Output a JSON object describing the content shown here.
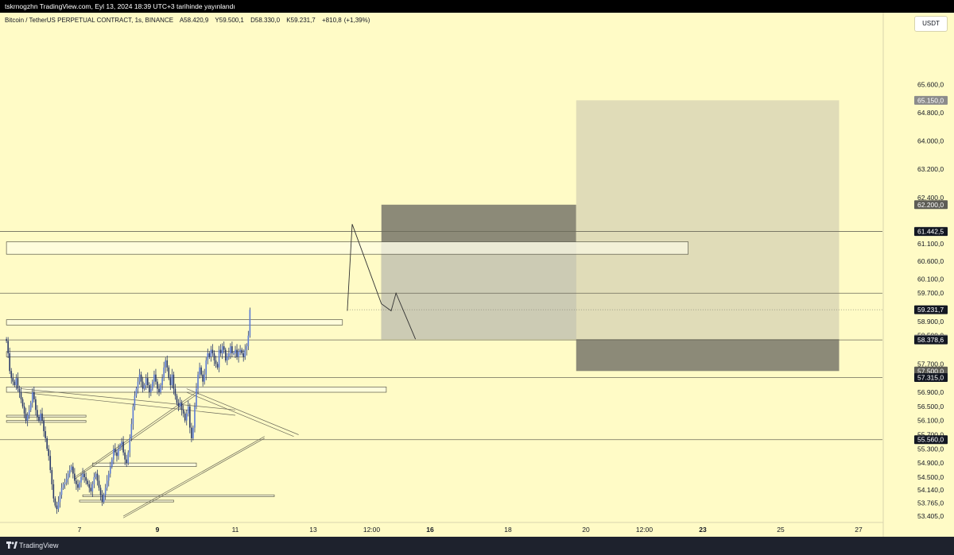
{
  "header": {
    "caption": "tskrnogzhn TradingView.com, Eyl 13, 2024 18:39 UTC+3 tarihinde yayınlandı"
  },
  "legend": {
    "symbol": "Bitcoin / TetherUS PERPETUAL CONTRACT, 1s, BINANCE",
    "open": "A58.420,9",
    "high": "Y59.500,1",
    "low": "D58.330,0",
    "close": "K59.231,7",
    "change": "+810,8",
    "change_pct": "(+1,39%)"
  },
  "currency_button": "USDT",
  "footer": {
    "brand": "TradingView",
    "logo_icon": "tradingview-logo-icon"
  },
  "colors": {
    "background": "#fffbc6",
    "candle": "#2a3a6a",
    "stop_zone": "#8c8a78",
    "target_zone": "#e0dcb8",
    "entry_zone": "#cccbb4",
    "last_price": "#131722"
  },
  "chart_data": {
    "type": "candlestick",
    "symbol": "BTCUSDT.P",
    "timeframe": "1s",
    "price_axis": {
      "ylim": [
        53250,
        66250
      ],
      "ticks": [
        "65.600,0",
        "64.800,0",
        "64.000,0",
        "63.200,0",
        "62.400,0",
        "61.100,0",
        "60.600,0",
        "60.100,0",
        "59.700,0",
        "58.900,0",
        "58.500,0",
        "57.700,0",
        "56.900,0",
        "56.500,0",
        "56.100,0",
        "55.700,0",
        "55.300,0",
        "54.900,0",
        "54.500,0",
        "54.140,0",
        "53.765,0",
        "53.405,0"
      ],
      "tick_values": [
        65600,
        64800,
        64000,
        63200,
        62400,
        61100,
        60600,
        60100,
        59700,
        58900,
        58500,
        57700,
        56900,
        56500,
        56100,
        55700,
        55300,
        54900,
        54500,
        54140,
        53765,
        53405
      ],
      "tags": [
        {
          "label": "65.150,0",
          "value": 65150,
          "style": "gray"
        },
        {
          "label": "62.200,0",
          "value": 62200,
          "style": "dark"
        },
        {
          "label": "61.450,0",
          "value": 61450,
          "style": "gray"
        },
        {
          "label": "61.442,5",
          "value": 61442.5,
          "style": "black"
        },
        {
          "label": "59.231,7",
          "value": 59231.7,
          "style": "black"
        },
        {
          "label": "58.400,0",
          "value": 58400,
          "style": "dark"
        },
        {
          "label": "58.400,0",
          "value": 58400,
          "style": "gray"
        },
        {
          "label": "58.378,6",
          "value": 58378.6,
          "style": "black"
        },
        {
          "label": "57.500,0",
          "value": 57500,
          "style": "dark"
        },
        {
          "label": "57.315,0",
          "value": 57315,
          "style": "black"
        },
        {
          "label": "55.560,0",
          "value": 55560,
          "style": "black"
        }
      ]
    },
    "time_axis": {
      "labels": [
        {
          "label": "7",
          "t": 0,
          "bold": false
        },
        {
          "label": "9",
          "t": 48,
          "bold": true
        },
        {
          "label": "11",
          "t": 96,
          "bold": false
        },
        {
          "label": "13",
          "t": 144,
          "bold": false
        },
        {
          "label": "12:00",
          "t": 180,
          "bold": false
        },
        {
          "label": "16",
          "t": 216,
          "bold": true
        },
        {
          "label": "18",
          "t": 264,
          "bold": false
        },
        {
          "label": "20",
          "t": 312,
          "bold": false
        },
        {
          "label": "12:00",
          "t": 348,
          "bold": false
        },
        {
          "label": "23",
          "t": 384,
          "bold": true
        },
        {
          "label": "25",
          "t": 432,
          "bold": false
        },
        {
          "label": "27",
          "t": 480,
          "bold": false
        }
      ]
    },
    "close_series": {
      "start_hour": -45,
      "closes": [
        58350,
        58000,
        57500,
        57300,
        57200,
        57100,
        57300,
        57000,
        56900,
        56700,
        56500,
        56300,
        56100,
        56250,
        56400,
        56600,
        56900,
        56700,
        56400,
        56200,
        56100,
        56300,
        56100,
        55800,
        55600,
        55300,
        55100,
        54700,
        54300,
        53900,
        53700,
        53600,
        53800,
        54000,
        54200,
        54300,
        54350,
        54450,
        54600,
        54700,
        54800,
        54600,
        54400,
        54300,
        54200,
        54350,
        54500,
        54600,
        54500,
        54400,
        54300,
        54200,
        54100,
        54300,
        54500,
        54600,
        54400,
        54200,
        54000,
        53800,
        54000,
        54200,
        54400,
        54600,
        54800,
        55000,
        55300,
        55200,
        55100,
        55300,
        55400,
        55500,
        55200,
        55000,
        54900,
        55200,
        55600,
        56000,
        56500,
        56800,
        57000,
        57200,
        57400,
        57200,
        57000,
        57100,
        57300,
        57100,
        56900,
        57000,
        57200,
        57400,
        57200,
        57000,
        56900,
        57100,
        57300,
        57600,
        57800,
        57600,
        57300,
        57100,
        57400,
        57000,
        56800,
        56600,
        56500,
        56600,
        56400,
        56300,
        56100,
        56300,
        56500,
        55900,
        55600,
        55900,
        56500,
        57000,
        57400,
        57600,
        57400,
        57200,
        57400,
        57800,
        58000,
        57900,
        58100,
        58000,
        57800,
        57700,
        57600,
        58100,
        58000,
        58200,
        58100,
        57800,
        57900,
        58000,
        58200,
        58000,
        58000,
        58100,
        57900,
        58050,
        58100,
        58000,
        57900,
        58100,
        58200,
        58500,
        59231.7
      ]
    },
    "zones": [
      {
        "name": "stop-zone-upper",
        "from_t": 186,
        "to_t": 306,
        "from_price": 58400,
        "to_price": 62200
      },
      {
        "name": "target-zone",
        "from_t": 306,
        "to_t": 468,
        "from_price": 58400,
        "to_price": 65150
      },
      {
        "name": "stop-zone-lower",
        "from_t": 306,
        "to_t": 468,
        "from_price": 57500,
        "to_price": 58400
      }
    ],
    "horizontal_lines": [
      61442.5,
      59700,
      58378.6,
      57315,
      55560
    ],
    "rectangles": [
      {
        "from_t": -45,
        "to_t": 375,
        "from_price": 60800,
        "to_price": 61150
      },
      {
        "from_t": -45,
        "to_t": 162,
        "from_price": 58800,
        "to_price": 58950
      },
      {
        "from_t": -45,
        "to_t": 102,
        "from_price": 57900,
        "to_price": 58050
      },
      {
        "from_t": -45,
        "to_t": 189,
        "from_price": 56900,
        "to_price": 57050
      },
      {
        "from_t": -45,
        "to_t": 4,
        "from_price": 56200,
        "to_price": 56250
      },
      {
        "from_t": -45,
        "to_t": 4,
        "from_price": 56050,
        "to_price": 56100
      },
      {
        "from_t": 8,
        "to_t": 72,
        "from_price": 54800,
        "to_price": 54900
      },
      {
        "from_t": 0,
        "to_t": 58,
        "from_price": 53800,
        "to_price": 53850
      },
      {
        "from_t": 2,
        "to_t": 120,
        "from_price": 53950,
        "to_price": 54000
      }
    ],
    "trendlines": [
      {
        "points": [
          [
            -36,
            57000
          ],
          [
            96,
            56400
          ]
        ]
      },
      {
        "points": [
          [
            -36,
            56900
          ],
          [
            96,
            56250
          ]
        ]
      },
      {
        "points": [
          [
            -3,
            54500
          ],
          [
            72,
            56900
          ]
        ]
      },
      {
        "points": [
          [
            -3,
            54450
          ],
          [
            72,
            56830
          ]
        ]
      },
      {
        "points": [
          [
            27,
            53400
          ],
          [
            114,
            55650
          ]
        ]
      },
      {
        "points": [
          [
            27,
            53350
          ],
          [
            114,
            55600
          ]
        ]
      },
      {
        "points": [
          [
            66,
            57000
          ],
          [
            135,
            55700
          ]
        ]
      },
      {
        "points": [
          [
            66,
            56900
          ],
          [
            132,
            55650
          ]
        ]
      }
    ],
    "projection": [
      [
        165,
        59200
      ],
      [
        168,
        61650
      ],
      [
        186,
        59400
      ],
      [
        192,
        59200
      ],
      [
        195,
        59700
      ],
      [
        207,
        58400
      ]
    ],
    "last_price": 59231.7,
    "last_price_label": "59.231,7"
  }
}
